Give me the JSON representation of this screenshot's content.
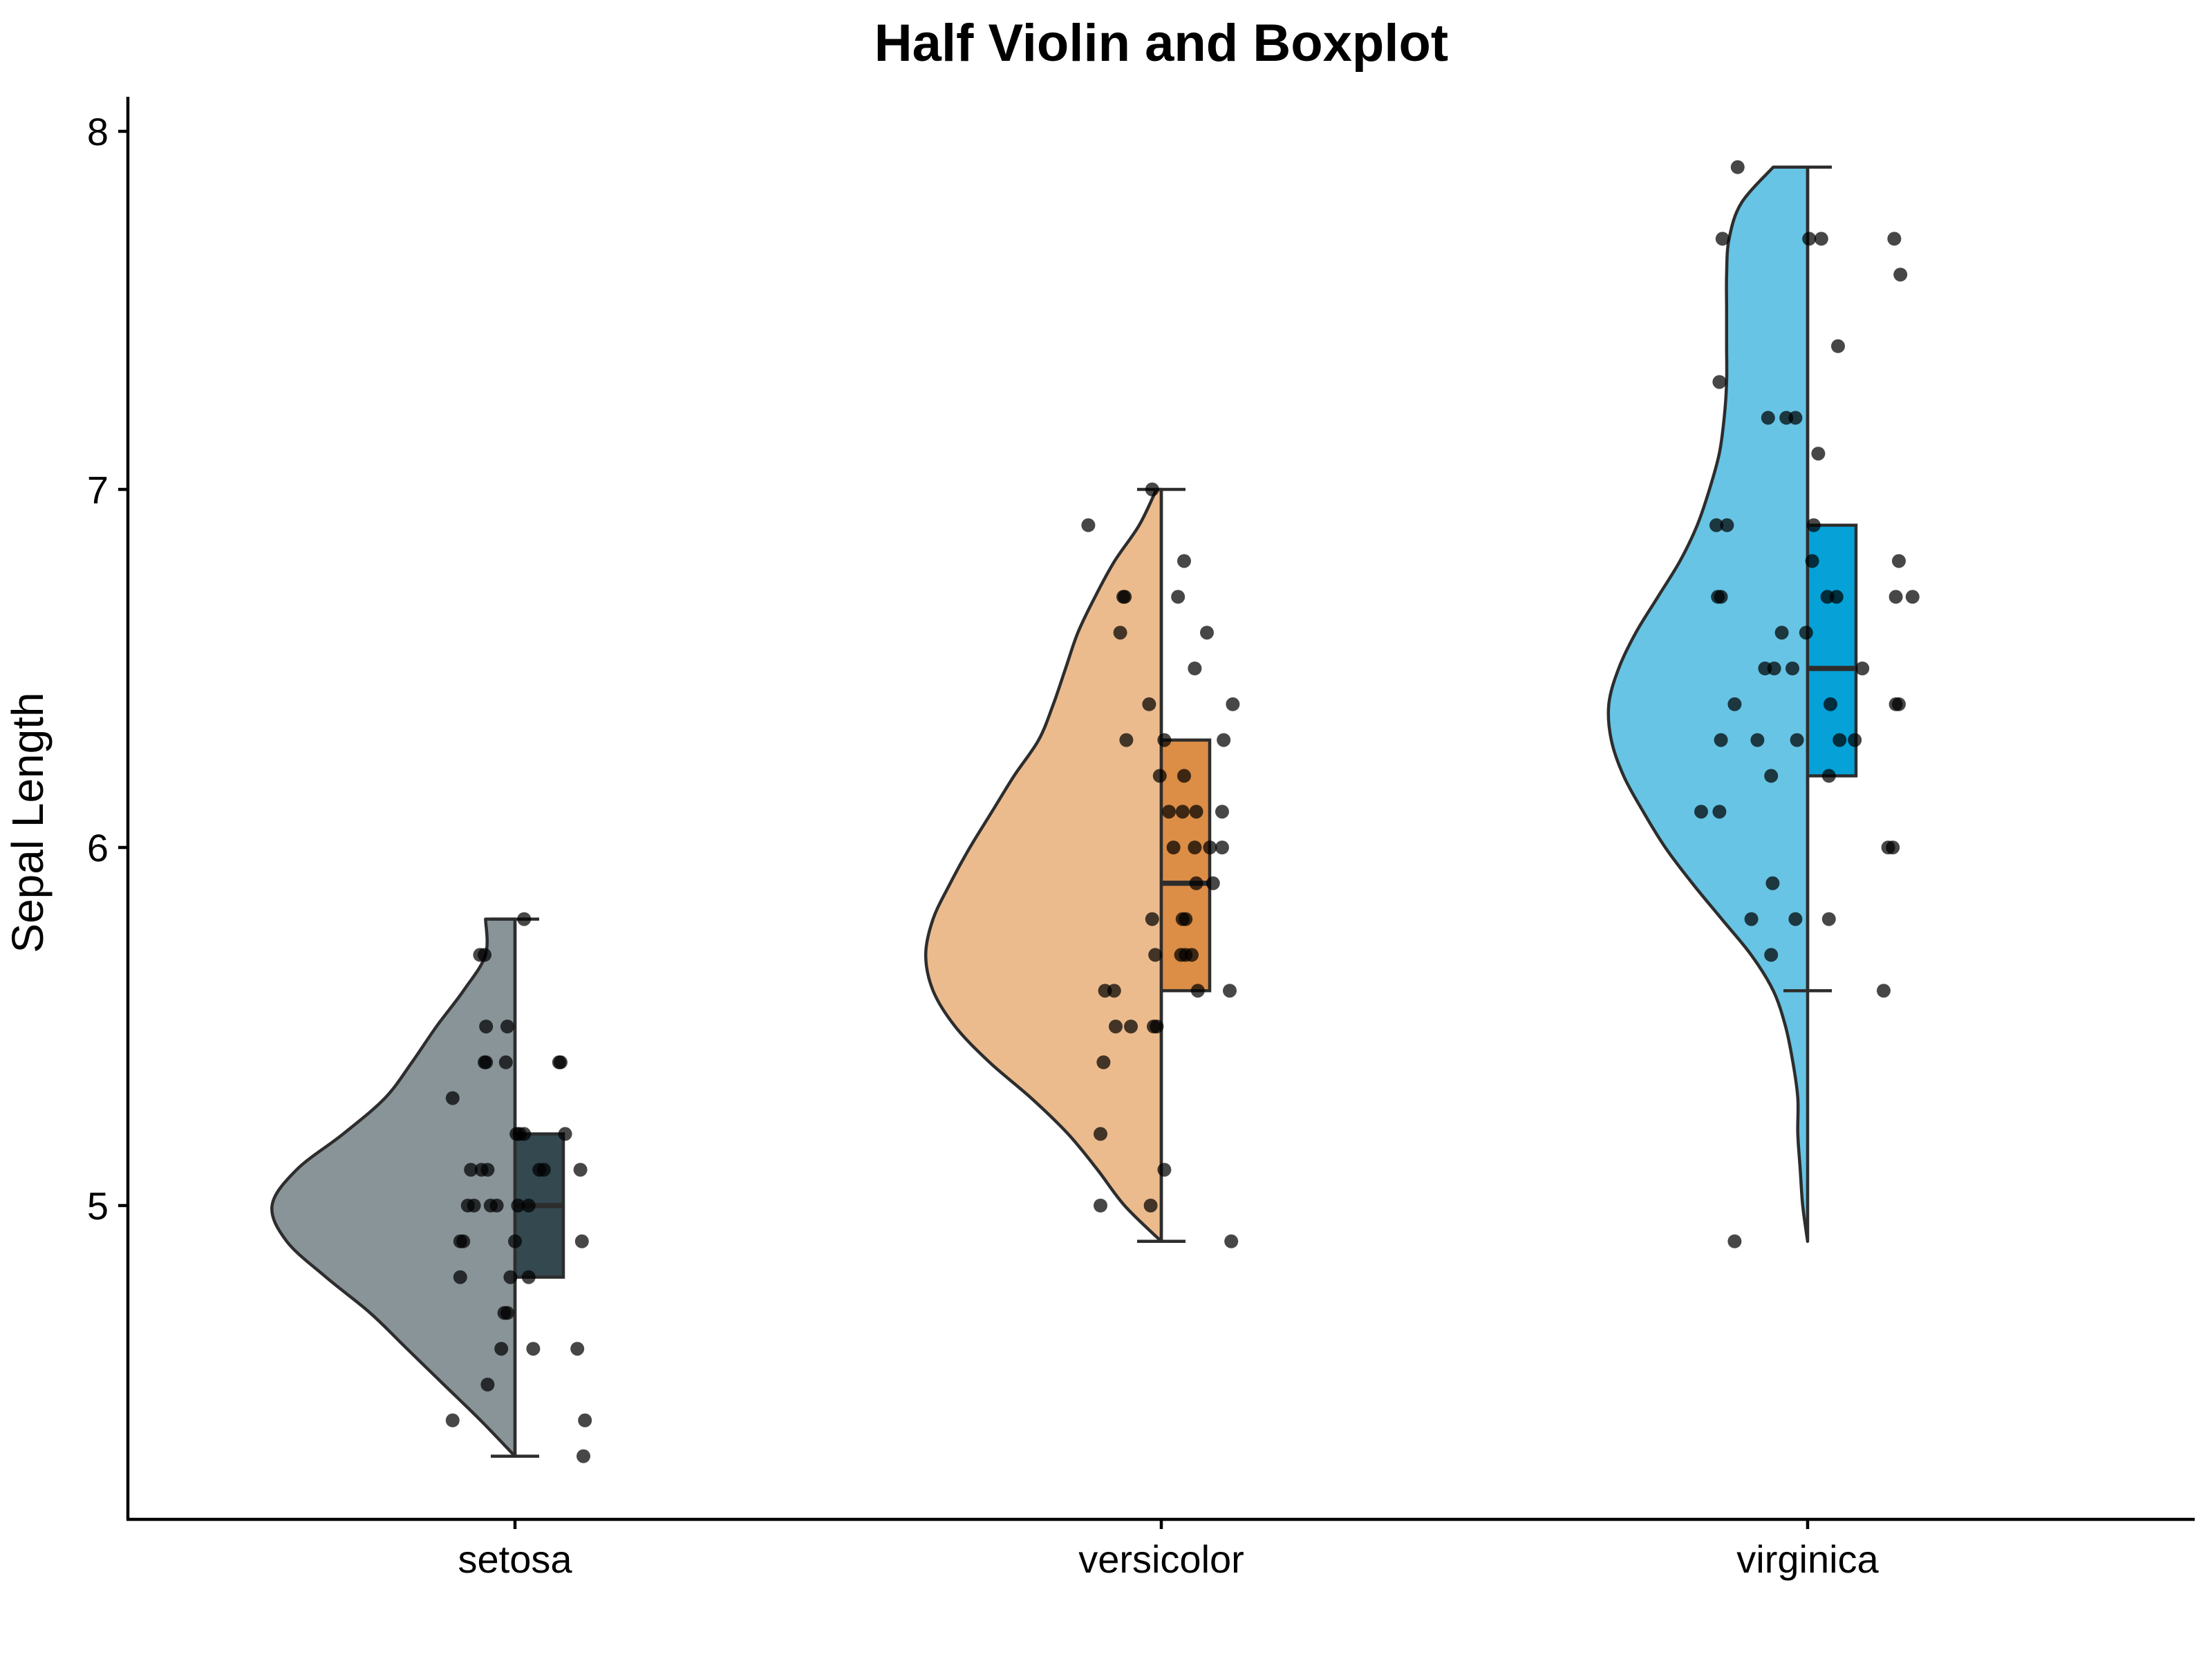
{
  "chart_data": {
    "type": "half-violin-boxplot",
    "title": "Half Violin and Boxplot",
    "xlabel": "",
    "ylabel": "Sepal Length",
    "ylim": [
      4.15,
      8.1
    ],
    "yticks": [
      5,
      6,
      7,
      8
    ],
    "grid": false,
    "legend": "none",
    "categories": [
      "setosa",
      "versicolor",
      "virginica"
    ],
    "groups": [
      {
        "name": "setosa",
        "violin_color": "#899499",
        "box_color": "#34484F",
        "box": {
          "min": 4.3,
          "q1": 4.8,
          "median": 5.0,
          "q3": 5.2,
          "max": 5.8
        },
        "density": [
          [
            4.3,
            0.0
          ],
          [
            4.4,
            0.14
          ],
          [
            4.5,
            0.29
          ],
          [
            4.6,
            0.44
          ],
          [
            4.7,
            0.59
          ],
          [
            4.8,
            0.77
          ],
          [
            4.9,
            0.93
          ],
          [
            5.0,
            0.99
          ],
          [
            5.1,
            0.89
          ],
          [
            5.2,
            0.7
          ],
          [
            5.3,
            0.53
          ],
          [
            5.4,
            0.42
          ],
          [
            5.5,
            0.32
          ],
          [
            5.6,
            0.21
          ],
          [
            5.7,
            0.12
          ],
          [
            5.8,
            0.12
          ]
        ],
        "points": [
          [
            4.4,
            -0.41
          ],
          [
            4.5,
            -0.18
          ],
          [
            4.4,
            0.46
          ],
          [
            4.3,
            0.45
          ],
          [
            4.6,
            -0.09
          ],
          [
            4.6,
            0.12
          ],
          [
            4.6,
            0.41
          ],
          [
            4.7,
            -0.07
          ],
          [
            4.7,
            -0.05
          ],
          [
            4.8,
            -0.36
          ],
          [
            4.8,
            -0.03
          ],
          [
            4.8,
            0.09
          ],
          [
            4.9,
            -0.34
          ],
          [
            4.9,
            -0.36
          ],
          [
            4.9,
            0.0
          ],
          [
            4.9,
            0.44
          ],
          [
            5.0,
            -0.31
          ],
          [
            5.0,
            -0.27
          ],
          [
            5.0,
            -0.16
          ],
          [
            5.0,
            -0.12
          ],
          [
            5.0,
            0.02
          ],
          [
            5.0,
            0.09
          ],
          [
            5.1,
            -0.29
          ],
          [
            5.1,
            -0.22
          ],
          [
            5.1,
            -0.18
          ],
          [
            5.1,
            0.16
          ],
          [
            5.1,
            0.19
          ],
          [
            5.2,
            0.03
          ],
          [
            5.2,
            0.01
          ],
          [
            5.2,
            0.06
          ],
          [
            5.1,
            0.43
          ],
          [
            5.2,
            0.33
          ],
          [
            5.3,
            -0.41
          ],
          [
            5.4,
            -0.2
          ],
          [
            5.4,
            -0.19
          ],
          [
            5.4,
            -0.06
          ],
          [
            5.5,
            -0.19
          ],
          [
            5.5,
            -0.05
          ],
          [
            5.4,
            0.29
          ],
          [
            5.4,
            0.3
          ],
          [
            5.7,
            -0.23
          ],
          [
            5.7,
            -0.2
          ],
          [
            5.8,
            0.06
          ]
        ]
      },
      {
        "name": "versicolor",
        "violin_color": "#ECBB8D",
        "box_color": "#DC8D46",
        "box": {
          "min": 4.9,
          "q1": 5.6,
          "median": 5.9,
          "q3": 6.3,
          "max": 7.0
        },
        "density": [
          [
            4.9,
            0.0
          ],
          [
            5.0,
            0.15
          ],
          [
            5.1,
            0.26
          ],
          [
            5.2,
            0.38
          ],
          [
            5.3,
            0.53
          ],
          [
            5.4,
            0.7
          ],
          [
            5.5,
            0.84
          ],
          [
            5.6,
            0.93
          ],
          [
            5.7,
            0.96
          ],
          [
            5.8,
            0.93
          ],
          [
            5.9,
            0.86
          ],
          [
            6.0,
            0.78
          ],
          [
            6.1,
            0.69
          ],
          [
            6.2,
            0.6
          ],
          [
            6.3,
            0.5
          ],
          [
            6.4,
            0.44
          ],
          [
            6.5,
            0.39
          ],
          [
            6.6,
            0.34
          ],
          [
            6.7,
            0.27
          ],
          [
            6.8,
            0.19
          ],
          [
            6.9,
            0.09
          ],
          [
            7.0,
            0.02
          ]
        ],
        "points": [
          [
            5.0,
            -0.4
          ],
          [
            5.0,
            -0.07
          ],
          [
            5.1,
            0.02
          ],
          [
            4.9,
            0.46
          ],
          [
            5.2,
            -0.4
          ],
          [
            5.4,
            -0.38
          ],
          [
            5.5,
            -0.03
          ],
          [
            5.5,
            -0.05
          ],
          [
            5.5,
            -0.3
          ],
          [
            5.5,
            -0.2
          ],
          [
            5.6,
            -0.37
          ],
          [
            5.6,
            -0.31
          ],
          [
            5.6,
            0.24
          ],
          [
            5.6,
            0.45
          ],
          [
            5.7,
            -0.04
          ],
          [
            5.7,
            0.13
          ],
          [
            5.7,
            0.2
          ],
          [
            5.7,
            0.16
          ],
          [
            5.8,
            -0.06
          ],
          [
            5.8,
            0.14
          ],
          [
            5.8,
            0.16
          ],
          [
            5.9,
            0.23
          ],
          [
            5.9,
            0.34
          ],
          [
            6.0,
            0.08
          ],
          [
            6.0,
            0.4
          ],
          [
            6.0,
            0.32
          ],
          [
            6.0,
            0.22
          ],
          [
            6.1,
            0.05
          ],
          [
            6.1,
            0.14
          ],
          [
            6.1,
            0.23
          ],
          [
            6.1,
            0.4
          ],
          [
            6.2,
            -0.01
          ],
          [
            6.2,
            0.15
          ],
          [
            6.3,
            -0.23
          ],
          [
            6.3,
            0.02
          ],
          [
            6.3,
            0.41
          ],
          [
            6.4,
            0.47
          ],
          [
            6.4,
            -0.08
          ],
          [
            6.5,
            0.22
          ],
          [
            6.6,
            -0.27
          ],
          [
            6.6,
            0.3
          ],
          [
            6.7,
            -0.24
          ],
          [
            6.7,
            -0.25
          ],
          [
            6.7,
            0.11
          ],
          [
            6.8,
            0.15
          ],
          [
            6.9,
            -0.48
          ],
          [
            7.0,
            -0.06
          ]
        ]
      },
      {
        "name": "virginica",
        "violin_color": "#67C4E4",
        "box_color": "#05A1D7",
        "box": {
          "min": 5.6,
          "q1": 6.2,
          "median": 6.5,
          "q3": 6.9,
          "max": 7.9
        },
        "density": [
          [
            4.9,
            0.0
          ],
          [
            5.0,
            0.02
          ],
          [
            5.1,
            0.03
          ],
          [
            5.2,
            0.04
          ],
          [
            5.3,
            0.04
          ],
          [
            5.4,
            0.06
          ],
          [
            5.5,
            0.09
          ],
          [
            5.6,
            0.14
          ],
          [
            5.7,
            0.23
          ],
          [
            5.8,
            0.35
          ],
          [
            5.9,
            0.47
          ],
          [
            6.0,
            0.58
          ],
          [
            6.1,
            0.67
          ],
          [
            6.2,
            0.75
          ],
          [
            6.3,
            0.8
          ],
          [
            6.4,
            0.81
          ],
          [
            6.5,
            0.77
          ],
          [
            6.6,
            0.7
          ],
          [
            6.7,
            0.61
          ],
          [
            6.8,
            0.52
          ],
          [
            6.9,
            0.45
          ],
          [
            7.0,
            0.4
          ],
          [
            7.1,
            0.36
          ],
          [
            7.2,
            0.34
          ],
          [
            7.3,
            0.33
          ],
          [
            7.4,
            0.33
          ],
          [
            7.5,
            0.33
          ],
          [
            7.6,
            0.33
          ],
          [
            7.7,
            0.32
          ],
          [
            7.8,
            0.27
          ],
          [
            7.9,
            0.14
          ]
        ],
        "points": [
          [
            4.9,
            -0.48
          ],
          [
            5.6,
            0.5
          ],
          [
            5.7,
            -0.24
          ],
          [
            5.8,
            -0.08
          ],
          [
            5.8,
            -0.37
          ],
          [
            5.8,
            0.14
          ],
          [
            5.9,
            -0.23
          ],
          [
            6.0,
            0.53
          ],
          [
            6.0,
            0.56
          ],
          [
            6.1,
            -0.7
          ],
          [
            6.1,
            -0.58
          ],
          [
            6.2,
            -0.24
          ],
          [
            6.2,
            0.14
          ],
          [
            6.3,
            -0.57
          ],
          [
            6.3,
            -0.33
          ],
          [
            6.3,
            -0.07
          ],
          [
            6.3,
            0.21
          ],
          [
            6.3,
            0.31
          ],
          [
            6.4,
            -0.48
          ],
          [
            6.4,
            0.15
          ],
          [
            6.4,
            0.6
          ],
          [
            6.4,
            0.58
          ],
          [
            6.5,
            -0.28
          ],
          [
            6.5,
            -0.22
          ],
          [
            6.5,
            0.36
          ],
          [
            6.5,
            -0.1
          ],
          [
            6.6,
            -0.17
          ],
          [
            6.6,
            -0.01
          ],
          [
            6.7,
            -0.59
          ],
          [
            6.7,
            -0.57
          ],
          [
            6.7,
            0.13
          ],
          [
            6.7,
            0.19
          ],
          [
            6.7,
            0.58
          ],
          [
            6.7,
            0.69
          ],
          [
            6.8,
            0.03
          ],
          [
            6.8,
            0.6
          ],
          [
            6.9,
            -0.6
          ],
          [
            6.9,
            -0.53
          ],
          [
            6.9,
            0.04
          ],
          [
            7.1,
            0.07
          ],
          [
            7.2,
            -0.26
          ],
          [
            7.2,
            -0.08
          ],
          [
            7.2,
            -0.14
          ],
          [
            7.3,
            -0.58
          ],
          [
            7.4,
            0.2
          ],
          [
            7.6,
            0.61
          ],
          [
            7.7,
            -0.56
          ],
          [
            7.7,
            0.01
          ],
          [
            7.7,
            0.09
          ],
          [
            7.7,
            0.57
          ],
          [
            7.9,
            -0.46
          ]
        ]
      }
    ]
  }
}
